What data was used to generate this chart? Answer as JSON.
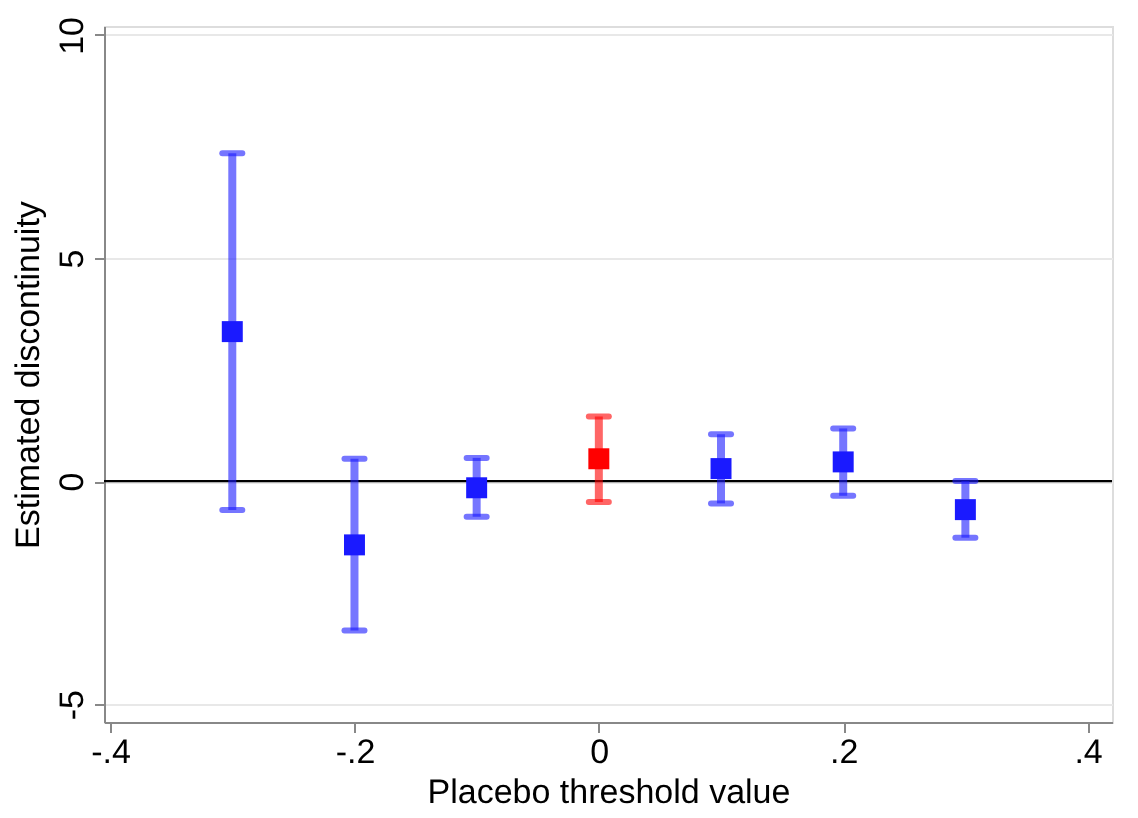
{
  "chart_data": {
    "type": "scatter",
    "xlabel": "Placebo threshold value",
    "ylabel": "Estimated discontinuity",
    "xlim": [
      -0.405,
      0.42
    ],
    "ylim": [
      -5.4,
      10.2
    ],
    "xticks": [
      {
        "value": -0.4,
        "label": "-.4"
      },
      {
        "value": -0.2,
        "label": "-.2"
      },
      0,
      {
        "value": 0.2,
        "label": ".2"
      },
      {
        "value": 0.4,
        "label": ".4"
      }
    ],
    "yticks": [
      -5,
      0,
      5,
      10
    ],
    "grid": "y",
    "marker": "square",
    "ref_lines": [
      {
        "axis": "y",
        "value": 0,
        "color": "#000000"
      }
    ],
    "series": [
      {
        "color": "#1a1aff",
        "x": [
          -0.3,
          -0.2,
          -0.1,
          0.1,
          0.2,
          0.3
        ],
        "values": [
          3.35,
          -1.43,
          -0.15,
          0.28,
          0.43,
          -0.64
        ],
        "errors": [
          [
            -0.65,
            7.35
          ],
          [
            -3.35,
            0.5
          ],
          [
            -0.8,
            0.52
          ],
          [
            -0.5,
            1.05
          ],
          [
            -0.33,
            1.18
          ],
          [
            -1.27,
            0.0
          ]
        ]
      },
      {
        "color": "#ff0000",
        "x": [
          0
        ],
        "values": [
          0.5
        ],
        "errors": [
          [
            -0.47,
            1.45
          ]
        ]
      }
    ]
  }
}
